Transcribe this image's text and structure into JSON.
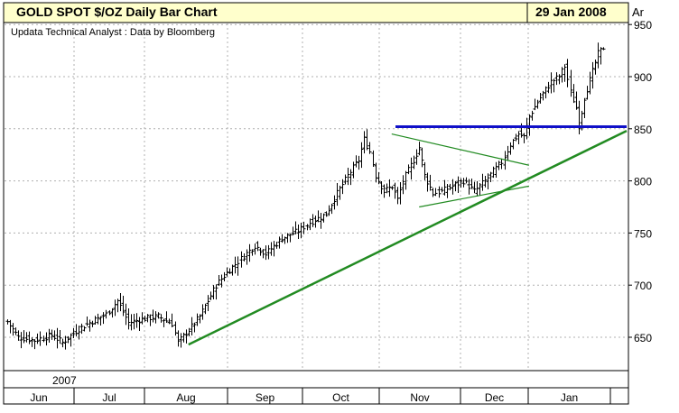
{
  "header": {
    "title": "GOLD SPOT $/OZ Daily Bar Chart",
    "date": "29 Jan 2008",
    "unit": "Ar"
  },
  "subtitle": "Updata Technical Analyst : Data by Bloomberg",
  "colors": {
    "header_bg": "#FFFFCC",
    "bars": "#000000",
    "trend": "#228B22",
    "resistance": "#1010C8",
    "grid": "#B0B0B0"
  },
  "chart_data": {
    "type": "bar",
    "subtype": "ohlc",
    "x_axis": {
      "year_label": "2007",
      "months": [
        "Jun",
        "Jul",
        "Aug",
        "Sep",
        "Oct",
        "Nov",
        "Dec",
        "Jan"
      ]
    },
    "y_axis": {
      "ticks": [
        650,
        700,
        750,
        800,
        850,
        900,
        950
      ],
      "range": [
        620,
        950
      ]
    },
    "grid": true,
    "series_points": [
      [
        0,
        665
      ],
      [
        4,
        650
      ],
      [
        10,
        647
      ],
      [
        16,
        652
      ],
      [
        20,
        645
      ],
      [
        26,
        658
      ],
      [
        30,
        664
      ],
      [
        36,
        672
      ],
      [
        40,
        685
      ],
      [
        44,
        664
      ],
      [
        50,
        668
      ],
      [
        55,
        670
      ],
      [
        60,
        663
      ],
      [
        62,
        645
      ],
      [
        66,
        657
      ],
      [
        70,
        670
      ],
      [
        76,
        700
      ],
      [
        80,
        712
      ],
      [
        86,
        728
      ],
      [
        90,
        738
      ],
      [
        94,
        730
      ],
      [
        100,
        745
      ],
      [
        106,
        752
      ],
      [
        110,
        760
      ],
      [
        116,
        768
      ],
      [
        120,
        788
      ],
      [
        124,
        805
      ],
      [
        128,
        820
      ],
      [
        130,
        840
      ],
      [
        132,
        828
      ],
      [
        134,
        805
      ],
      [
        137,
        790
      ],
      [
        140,
        795
      ],
      [
        142,
        782
      ],
      [
        144,
        800
      ],
      [
        148,
        820
      ],
      [
        150,
        832
      ],
      [
        152,
        805
      ],
      [
        155,
        788
      ],
      [
        158,
        790
      ],
      [
        162,
        795
      ],
      [
        166,
        800
      ],
      [
        170,
        790
      ],
      [
        174,
        800
      ],
      [
        176,
        806
      ],
      [
        180,
        818
      ],
      [
        183,
        835
      ],
      [
        186,
        845
      ],
      [
        188,
        842
      ],
      [
        190,
        862
      ],
      [
        194,
        880
      ],
      [
        198,
        895
      ],
      [
        201,
        900
      ],
      [
        203,
        910
      ],
      [
        205,
        885
      ],
      [
        207,
        870
      ],
      [
        208,
        853
      ],
      [
        210,
        880
      ],
      [
        213,
        905
      ],
      [
        215,
        922
      ],
      [
        217,
        928
      ]
    ],
    "annotations": {
      "resistance_level": 852,
      "support_trendline": [
        [
          66,
          643
        ],
        [
          225,
          848
        ]
      ],
      "triangle_upper": [
        [
          140,
          845
        ],
        [
          190,
          815
        ]
      ],
      "triangle_lower": [
        [
          150,
          775
        ],
        [
          190,
          795
        ]
      ]
    }
  }
}
